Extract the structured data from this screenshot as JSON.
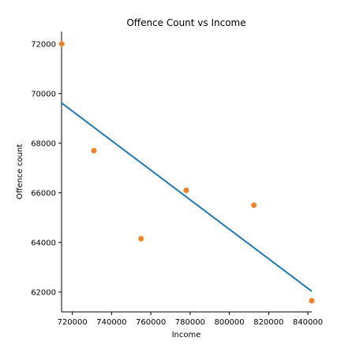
{
  "chart_data": {
    "type": "scatter",
    "title": "Offence Count vs Income",
    "xlabel": "Income",
    "ylabel": "Offence count",
    "xlim": [
      714500,
      842000
    ],
    "ylim": [
      61200,
      72500
    ],
    "x_ticks": [
      720000,
      740000,
      760000,
      780000,
      800000,
      820000,
      840000
    ],
    "x_tick_labels": [
      "720000",
      "740000",
      "760000",
      "780000",
      "800000",
      "820000",
      "840000"
    ],
    "y_ticks": [
      62000,
      64000,
      66000,
      68000,
      70000,
      72000
    ],
    "y_tick_labels": [
      "62000",
      "64000",
      "66000",
      "68000",
      "70000",
      "72000"
    ],
    "grid": false,
    "series": [
      {
        "kind": "scatter",
        "color": "#e8822a",
        "points": [
          {
            "x": 714600,
            "y": 72000
          },
          {
            "x": 731000,
            "y": 67700
          },
          {
            "x": 755000,
            "y": 64150
          },
          {
            "x": 778000,
            "y": 66100
          },
          {
            "x": 812500,
            "y": 65500
          },
          {
            "x": 842000,
            "y": 61650
          }
        ]
      },
      {
        "kind": "line",
        "color": "#1f77b4",
        "points": [
          {
            "x": 714500,
            "y": 69620
          },
          {
            "x": 842000,
            "y": 62030
          }
        ]
      }
    ]
  }
}
